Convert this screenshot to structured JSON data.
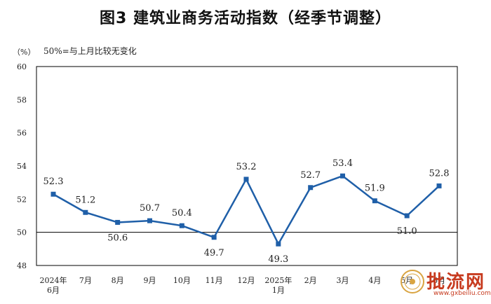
{
  "title": "图3  建筑业商务活动指数（经季节调整）",
  "unit": "（%）",
  "note": "50%=与上月比较无变化",
  "watermark": {
    "text": "批流网",
    "url": "www.gxbeiliu.com"
  },
  "colors": {
    "series": "#1f5fa8",
    "frame": "#000000",
    "reference": "#000000"
  },
  "chart_data": {
    "type": "line",
    "title": "图3  建筑业商务活动指数（经季节调整）",
    "ylabel": "（%）",
    "reference_line": 50,
    "ylim": [
      48,
      60
    ],
    "yticks": [
      48,
      50,
      52,
      54,
      56,
      58,
      60
    ],
    "grid": false,
    "categories": [
      [
        "2024年",
        "6月"
      ],
      [
        "7月"
      ],
      [
        "8月"
      ],
      [
        "9月"
      ],
      [
        "10月"
      ],
      [
        "11月"
      ],
      [
        "12月"
      ],
      [
        "2025年",
        "1月"
      ],
      [
        "2月"
      ],
      [
        "3月"
      ],
      [
        "4月"
      ],
      [
        "5月"
      ],
      [
        "6月"
      ]
    ],
    "series": [
      {
        "values": [
          52.3,
          51.2,
          50.6,
          50.7,
          50.4,
          49.7,
          53.2,
          49.3,
          52.7,
          53.4,
          51.9,
          51.0,
          52.8
        ]
      }
    ]
  }
}
